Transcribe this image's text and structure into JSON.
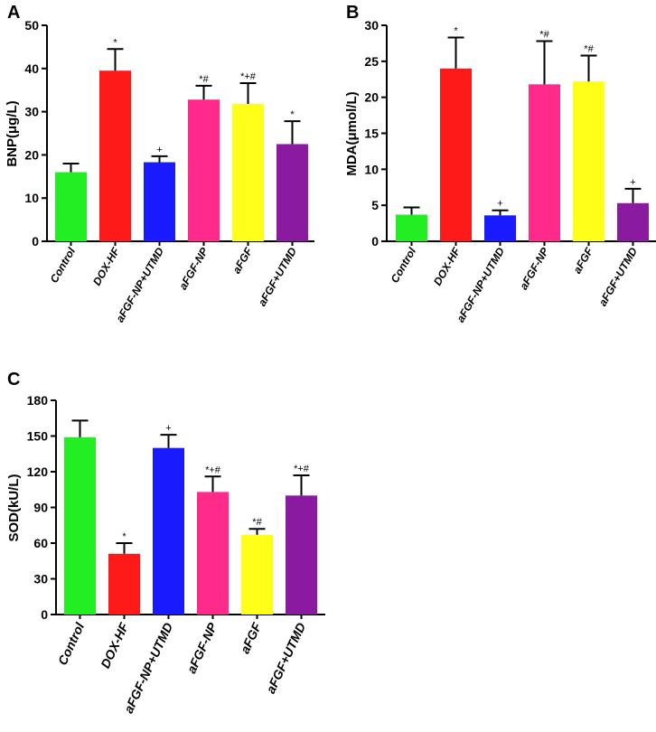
{
  "chart_data": [
    {
      "type": "bar",
      "panel": "A",
      "title": "",
      "xlabel": "",
      "ylabel": "BNP(μg/L)",
      "ylim": [
        0,
        50
      ],
      "yticks": [
        "0",
        "10",
        "20",
        "30",
        "40",
        "50"
      ],
      "categories": [
        "Control",
        "DOX-HF",
        "aFGF-NP+UTMD",
        "aFGF-NP",
        "aFGF",
        "aFGF+UTMD"
      ],
      "values": [
        16,
        39.5,
        18.3,
        32.8,
        31.8,
        22.5
      ],
      "errors": [
        2,
        5,
        1.4,
        3.2,
        4.8,
        5.3
      ],
      "colors": [
        "#22ee22",
        "#ff1a1a",
        "#1a1aff",
        "#ff2a8a",
        "#ffff1a",
        "#8a1aa0"
      ],
      "annotations": [
        "",
        "*",
        "+",
        "*#",
        "*+#",
        "*"
      ]
    },
    {
      "type": "bar",
      "panel": "B",
      "title": "",
      "xlabel": "",
      "ylabel": "MDA(μmol/L)",
      "ylim": [
        0,
        30
      ],
      "yticks": [
        "0",
        "5",
        "10",
        "15",
        "20",
        "25",
        "30"
      ],
      "categories": [
        "Control",
        "DOX-HF",
        "aFGF-NP+UTMD",
        "aFGF-NP",
        "aFGF",
        "aFGF+UTMD"
      ],
      "values": [
        3.7,
        24,
        3.6,
        21.8,
        22.2,
        5.3
      ],
      "errors": [
        1,
        4.3,
        0.7,
        6,
        3.6,
        2
      ],
      "colors": [
        "#22ee22",
        "#ff1a1a",
        "#1a1aff",
        "#ff2a8a",
        "#ffff1a",
        "#8a1aa0"
      ],
      "annotations": [
        "",
        "*",
        "+",
        "*#",
        "*#",
        "+"
      ]
    },
    {
      "type": "bar",
      "panel": "C",
      "title": "",
      "xlabel": "",
      "ylabel": "SOD(kU/L)",
      "ylim": [
        0,
        180
      ],
      "yticks": [
        "0",
        "30",
        "60",
        "90",
        "120",
        "150",
        "180"
      ],
      "categories": [
        "Control",
        "DOX-HF",
        "aFGF-NP+UTMD",
        "aFGF-NP",
        "aFGF",
        "aFGF+UTMD"
      ],
      "values": [
        149,
        51,
        140,
        103,
        67,
        100
      ],
      "errors": [
        14,
        9,
        11,
        13,
        5,
        17
      ],
      "colors": [
        "#22ee22",
        "#ff1a1a",
        "#1a1aff",
        "#ff2a8a",
        "#ffff1a",
        "#8a1aa0"
      ],
      "annotations": [
        "",
        "*",
        "+",
        "*+#",
        "*#",
        "*+#"
      ]
    }
  ]
}
